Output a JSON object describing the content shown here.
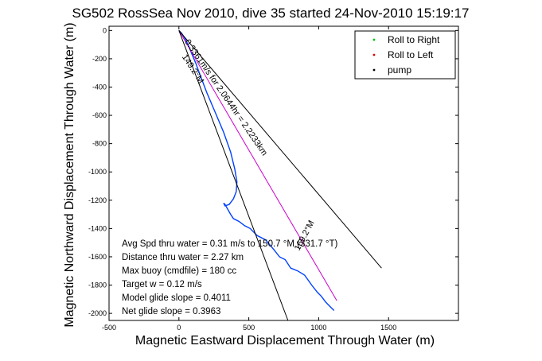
{
  "chart_data": {
    "type": "scatter",
    "title": "SG502 RossSea Nov 2010, dive 35 started 24-Nov-2010 15:19:17",
    "xlabel": "Magnetic Eastward Displacement Through Water (m)",
    "ylabel": "Magnetic Northward Displacement Through Water (m)",
    "xlim": [
      -500,
      2000
    ],
    "ylim": [
      -2050,
      30
    ],
    "xticks": [
      -500,
      0,
      500,
      1000,
      1500
    ],
    "yticks": [
      0,
      -200,
      -400,
      -600,
      -800,
      -1000,
      -1200,
      -1400,
      -1600,
      -1800,
      -2000
    ],
    "legend": {
      "position": "top-right",
      "entries": [
        {
          "label": "Roll to Right",
          "color": "#00c000",
          "marker": "dot"
        },
        {
          "label": "Roll to Left",
          "color": "#e00000",
          "marker": "dot"
        },
        {
          "label": "pump",
          "color": "#000000",
          "marker": "dot"
        }
      ]
    },
    "series": [
      {
        "color": "#0040ff",
        "x": [
          0,
          20,
          45,
          70,
          90,
          120,
          150,
          200,
          260,
          320,
          370,
          400,
          415,
          410,
          390,
          360,
          330,
          320,
          330,
          370,
          390,
          430,
          470,
          510,
          560,
          620,
          680,
          720,
          760,
          800,
          850,
          900,
          950,
          990,
          1020,
          1050,
          1080,
          1110
        ],
        "y": [
          0,
          -20,
          -60,
          -110,
          -160,
          -230,
          -310,
          -440,
          -580,
          -720,
          -860,
          -980,
          -1070,
          -1140,
          -1190,
          -1230,
          -1240,
          -1220,
          -1230,
          -1300,
          -1330,
          -1350,
          -1380,
          -1400,
          -1450,
          -1480,
          -1550,
          -1600,
          -1620,
          -1680,
          -1700,
          -1730,
          -1800,
          -1850,
          -1880,
          -1920,
          -1950,
          -1980
        ]
      },
      {
        "color": "#cc00cc",
        "x": [
          0,
          1130
        ],
        "y": [
          0,
          -1910
        ]
      },
      {
        "color": "#000000",
        "x": [
          0,
          1450
        ],
        "y": [
          0,
          -1680
        ]
      },
      {
        "color": "#000000",
        "x": [
          0,
          780
        ],
        "y": [
          0,
          -2050
        ]
      }
    ],
    "annotations": [
      {
        "text": "0.3361m/s for 2.0644hr = 2.2233km",
        "x": 40,
        "y": -80,
        "rotation": 55.5
      },
      {
        "text": "149.2°M",
        "x": 20,
        "y": -185,
        "rotation": 57
      },
      {
        "text": "169.2°M",
        "x": 860,
        "y": -1560,
        "rotation": -62
      }
    ],
    "stats": [
      "Avg Spd thru water =  0.31 m/s to 150.7   °M (331.7 °T)",
      "Distance thru water =  2.27 km",
      "Max buoy (cmdfile) = 180 cc",
      "Target w = 0.12 m/s",
      "Model glide slope = 0.4011",
      "Net glide slope = 0.3963"
    ]
  }
}
